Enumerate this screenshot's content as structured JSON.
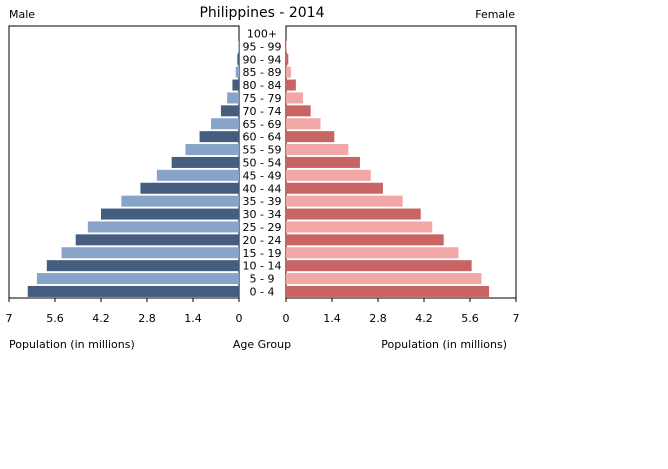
{
  "chart_data": {
    "type": "bar",
    "title": "Philippines - 2014",
    "left_label": "Male",
    "right_label": "Female",
    "xlabel_left": "Population (in millions)",
    "xlabel_center": "Age Group",
    "xlabel_right": "Population (in millions)",
    "xlim": [
      0,
      7
    ],
    "xticks": [
      "0",
      "1.4",
      "2.8",
      "4.2",
      "5.6",
      "7"
    ],
    "tick_values": [
      0,
      1.4,
      2.8,
      4.2,
      5.6,
      7
    ],
    "grid": false,
    "categories": [
      "100+",
      "95 - 99",
      "90 - 94",
      "85 - 89",
      "80 - 84",
      "75 - 79",
      "70 - 74",
      "65 - 69",
      "60 - 64",
      "55 - 59",
      "50 - 54",
      "45 - 49",
      "40 - 44",
      "35 - 39",
      "30 - 34",
      "25 - 29",
      "20 - 24",
      "15 - 19",
      "10 - 14",
      "5 - 9",
      "0 - 4"
    ],
    "series": [
      {
        "side": "male",
        "values": [
          0.0,
          0.02,
          0.05,
          0.1,
          0.2,
          0.36,
          0.55,
          0.85,
          1.2,
          1.63,
          2.05,
          2.5,
          3.0,
          3.58,
          4.2,
          4.6,
          4.97,
          5.4,
          5.85,
          6.15,
          6.43
        ]
      },
      {
        "side": "female",
        "values": [
          0.0,
          0.02,
          0.07,
          0.15,
          0.3,
          0.52,
          0.75,
          1.05,
          1.47,
          1.9,
          2.25,
          2.58,
          2.95,
          3.55,
          4.1,
          4.45,
          4.8,
          5.25,
          5.65,
          5.95,
          6.18
        ]
      }
    ],
    "colors": {
      "male_dark": "#455e80",
      "male_light": "#87a4c8",
      "female_dark": "#c96464",
      "female_light": "#f2a7a7"
    }
  }
}
